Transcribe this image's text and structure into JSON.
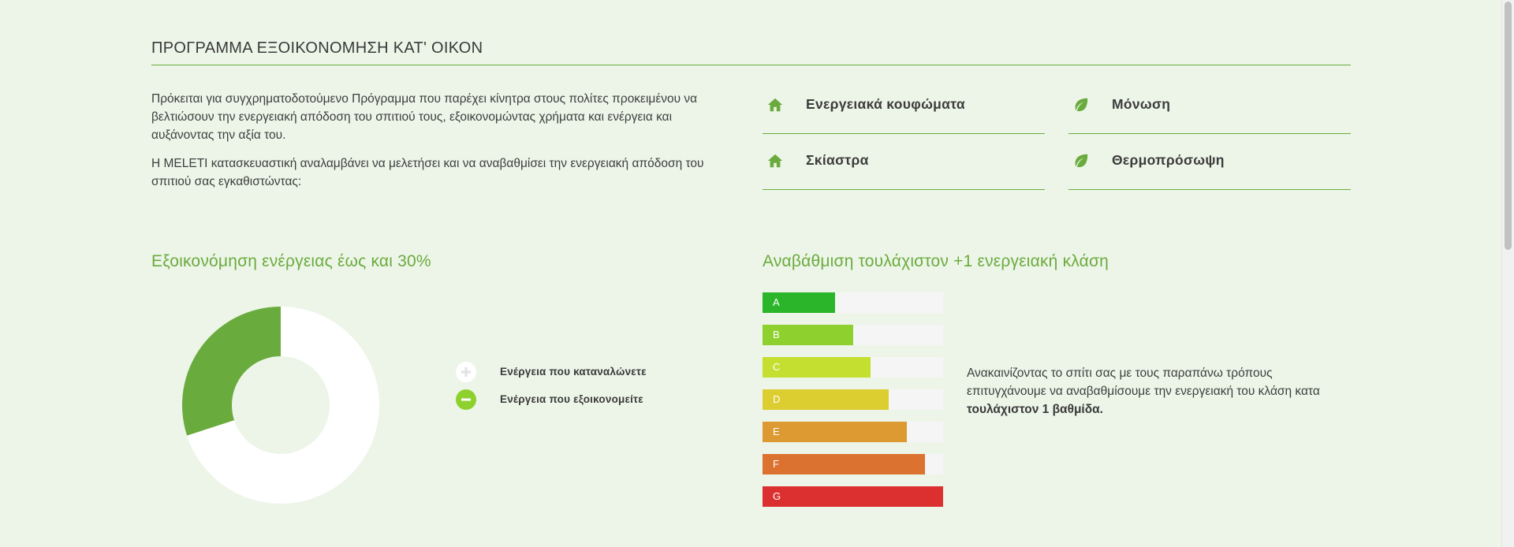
{
  "header": {
    "title": "ΠΡΟΓΡΑΜΜΑ ΕΞΟΙΚΟΝΟΜΗΣΗ ΚΑΤ' ΟΙΚΟΝ"
  },
  "intro": {
    "paragraph1": "Πρόκειται για συγχρηματοδοτούμενο Πρόγραμμα που παρέχει κίνητρα στους πολίτες προκειμένου να βελτιώσουν την ενεργειακή απόδοση του σπιτιού τους, εξοικονομώντας χρήματα και ενέργεια και αυξάνοντας την αξία του.",
    "paragraph2": "Η MELETI κατασκευαστική αναλαμβάνει να μελετήσει και να αναβαθμίσει την ενεργειακή απόδοση του σπιτιού σας εγκαθιστώντας:"
  },
  "features": [
    {
      "label": "Ενεργειακά κουφώματα",
      "icon": "home-icon"
    },
    {
      "label": "Μόνωση",
      "icon": "leaf-icon"
    },
    {
      "label": "Σκίαστρα",
      "icon": "home-icon"
    },
    {
      "label": "Θερμοπρόσωψη",
      "icon": "leaf-icon"
    }
  ],
  "savings": {
    "title": "Εξοικονόμηση ενέργειας έως και 30%",
    "legend": [
      {
        "label": "Ενέργεια που καταναλώνετε",
        "icon": "plus-circle-icon"
      },
      {
        "label": "Ενέργεια που εξοικονομείτε",
        "icon": "minus-circle-icon"
      }
    ]
  },
  "chart_data": [
    {
      "type": "pie",
      "title": "",
      "labels": [
        "Ενέργεια που καταναλώνετε",
        "Ενέργεια που εξοικονομείτε"
      ],
      "values": [
        70,
        30
      ],
      "colors": [
        "#ffffff",
        "#6aab3e"
      ],
      "donut": true
    },
    {
      "type": "bar",
      "orientation": "horizontal",
      "title": "",
      "categories": [
        "A",
        "B",
        "C",
        "D",
        "E",
        "F",
        "G"
      ],
      "values": [
        40,
        50,
        60,
        70,
        80,
        90,
        100
      ],
      "max": 100,
      "colors": [
        "#2ab52a",
        "#8ed12f",
        "#c4df30",
        "#dccd30",
        "#dd9a32",
        "#dc7230",
        "#dc3030"
      ]
    }
  ],
  "upgrade": {
    "title": "Αναβάθμιση τουλάχιστον +1 ενεργειακή κλάση",
    "text": "Ανακαινίζοντας το σπίτι σας με τους παραπάνω τρόπους επιτυγχάνουμε να αναβαθμίσουμε την ενεργειακή του κλάση κατα ",
    "text_bold": "τουλάχιστον 1 βαθμίδα."
  },
  "colors": {
    "accent": "#6aab3e",
    "background": "#edf5e8",
    "track": "#f5f5f5"
  }
}
